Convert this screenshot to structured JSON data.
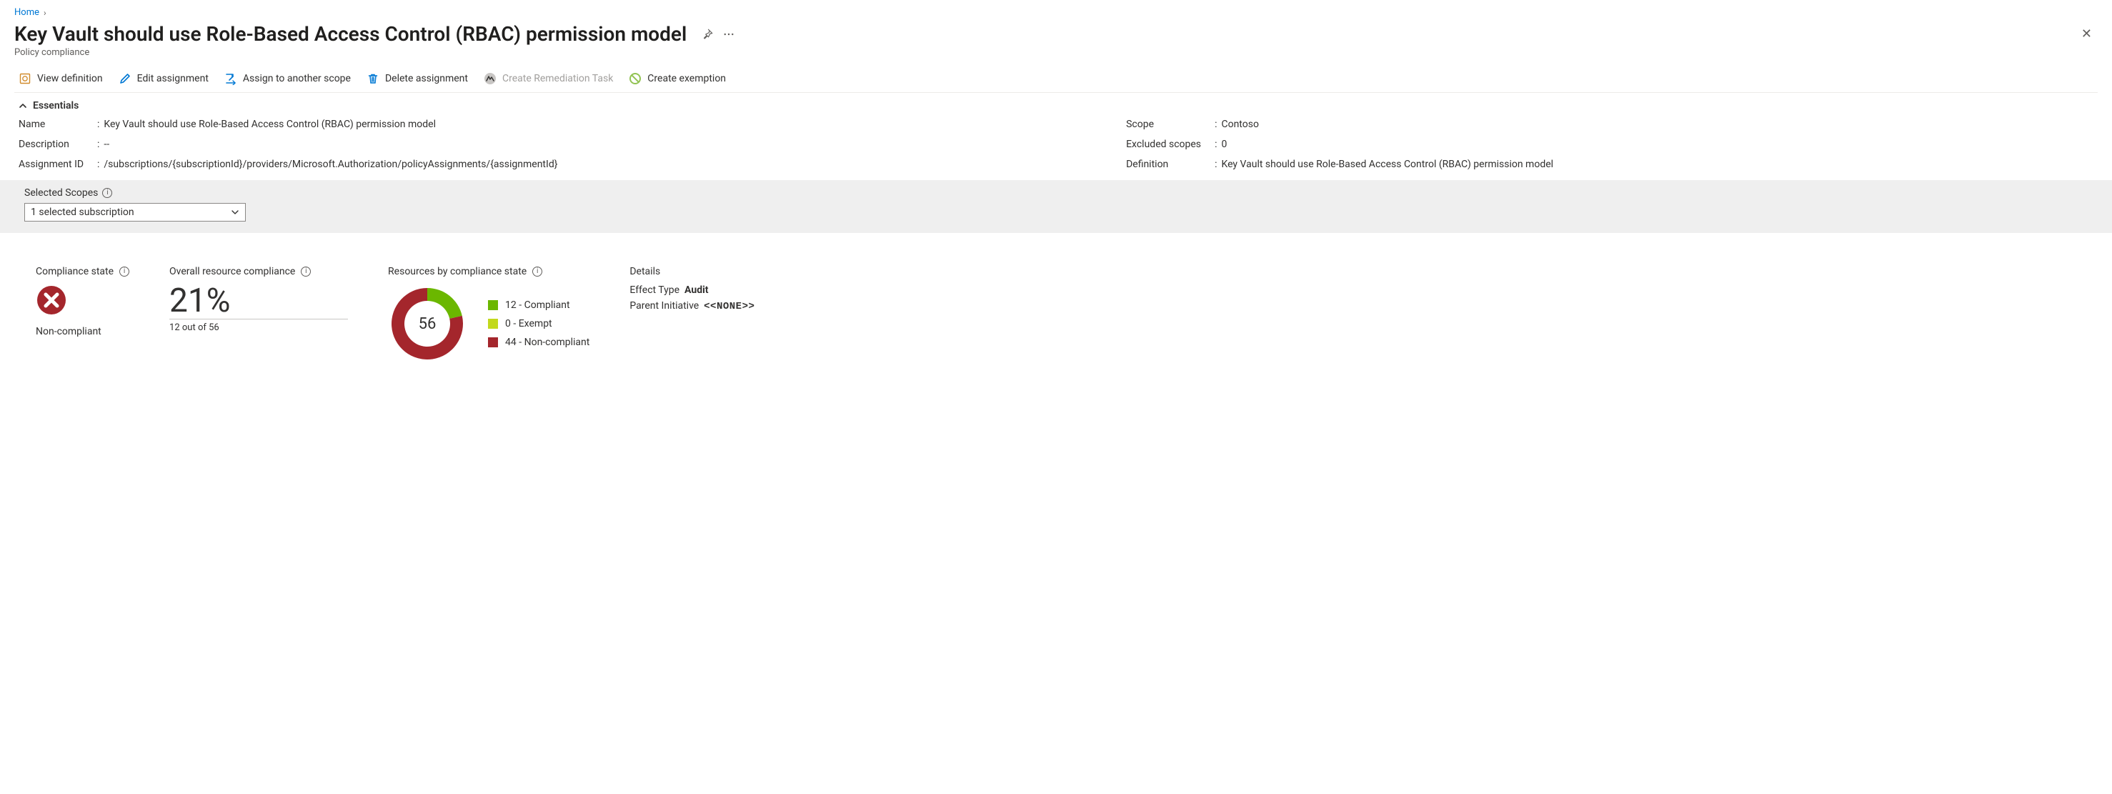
{
  "breadcrumb": {
    "home": "Home"
  },
  "title": "Key Vault should use Role-Based Access Control (RBAC) permission model",
  "subtitle": "Policy compliance",
  "commands": {
    "view_definition": "View definition",
    "edit_assignment": "Edit assignment",
    "assign_another": "Assign to another scope",
    "delete_assignment": "Delete assignment",
    "create_remediation": "Create Remediation Task",
    "create_exemption": "Create exemption"
  },
  "icon_colors": {
    "view_definition_box": "#d18b2c",
    "edit_pencil": "#0078d4",
    "assign_arrow": "#0078d4",
    "delete_trash": "#0078d4",
    "remediation_bg": "#c8c6c4",
    "remediation_fg": "#323130",
    "exemption_ring": "#92c353"
  },
  "essentials_header": "Essentials",
  "essentials": {
    "left": {
      "name_label": "Name",
      "name_value": "Key Vault should use Role-Based Access Control (RBAC) permission model",
      "description_label": "Description",
      "description_value": "--",
      "assignment_id_label": "Assignment ID",
      "assignment_id_value": "/subscriptions/{subscriptionId}/providers/Microsoft.Authorization/policyAssignments/{assignmentId}"
    },
    "right": {
      "scope_label": "Scope",
      "scope_value": "Contoso",
      "excluded_label": "Excluded scopes",
      "excluded_value": "0",
      "definition_label": "Definition",
      "definition_value": "Key Vault should use Role-Based Access Control (RBAC) permission model"
    }
  },
  "scopes": {
    "label": "Selected Scopes",
    "selected": "1 selected subscription"
  },
  "tiles": {
    "compliance_state": {
      "title": "Compliance state",
      "icon_color": "#a4262c",
      "value": "Non-compliant"
    },
    "overall": {
      "title": "Overall resource compliance",
      "percent": "21%",
      "sub": "12 out of 56",
      "underline_color": "#c8c6c4"
    },
    "donut": {
      "title": "Resources by compliance state",
      "total": 56,
      "total_label": "56",
      "slices": [
        {
          "label": "12 - Compliant",
          "value": 12,
          "color": "#6bb700"
        },
        {
          "label": "0 - Exempt",
          "value": 0,
          "color": "#c2d91c"
        },
        {
          "label": "44 - Non-compliant",
          "value": 44,
          "color": "#a4262c"
        }
      ],
      "ring_thickness": 18,
      "outer_radius": 50,
      "background_color": "#ffffff"
    },
    "details": {
      "title": "Details",
      "effect_label": "Effect Type",
      "effect_value": "Audit",
      "parent_label": "Parent Initiative",
      "parent_value": "<<NONE>>"
    }
  }
}
